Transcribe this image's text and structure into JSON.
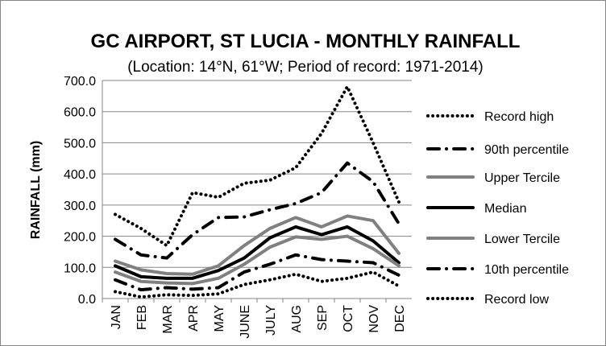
{
  "chart_data": {
    "type": "line",
    "title": "GC AIRPORT, ST LUCIA - MONTHLY RAINFALL",
    "subtitle": "(Location: 14°N, 61°W; Period of record: 1971-2014)",
    "xlabel": "",
    "ylabel": "RAINFALL (mm)",
    "ylim": [
      0,
      700
    ],
    "yticks": [
      "0.0",
      "100.0",
      "200.0",
      "300.0",
      "400.0",
      "500.0",
      "600.0",
      "700.0"
    ],
    "grid": true,
    "legend_placement": "right",
    "categories": [
      "JAN",
      "FEB",
      "MAR",
      "APR",
      "MAY",
      "JUNE",
      "JULY",
      "AUG",
      "SEP",
      "OCT",
      "NOV",
      "DEC"
    ],
    "series": [
      {
        "name": "Record high",
        "style": "dotted",
        "color": "#000000",
        "values": [
          270,
          225,
          170,
          340,
          325,
          370,
          380,
          420,
          530,
          680,
          500,
          310
        ]
      },
      {
        "name": "90th percentile",
        "style": "dashdot",
        "color": "#000000",
        "values": [
          190,
          140,
          130,
          205,
          260,
          262,
          285,
          305,
          340,
          435,
          375,
          240
        ]
      },
      {
        "name": "Upper Tercile",
        "style": "solid",
        "color": "#808080",
        "values": [
          120,
          92,
          80,
          78,
          105,
          170,
          225,
          260,
          230,
          265,
          250,
          145
        ]
      },
      {
        "name": "Median",
        "style": "solid",
        "color": "#000000",
        "values": [
          105,
          70,
          65,
          65,
          90,
          130,
          195,
          230,
          205,
          230,
          185,
          115
        ]
      },
      {
        "name": "Lower Tercile",
        "style": "solid",
        "color": "#808080",
        "values": [
          85,
          55,
          50,
          48,
          65,
          110,
          165,
          198,
          190,
          200,
          160,
          105
        ]
      },
      {
        "name": "10th percentile",
        "style": "dashdot",
        "color": "#000000",
        "values": [
          60,
          28,
          35,
          30,
          35,
          85,
          110,
          140,
          125,
          120,
          115,
          75
        ]
      },
      {
        "name": "Record low",
        "style": "dotted",
        "color": "#000000",
        "values": [
          22,
          5,
          12,
          10,
          15,
          45,
          60,
          78,
          55,
          65,
          85,
          40
        ]
      }
    ]
  }
}
